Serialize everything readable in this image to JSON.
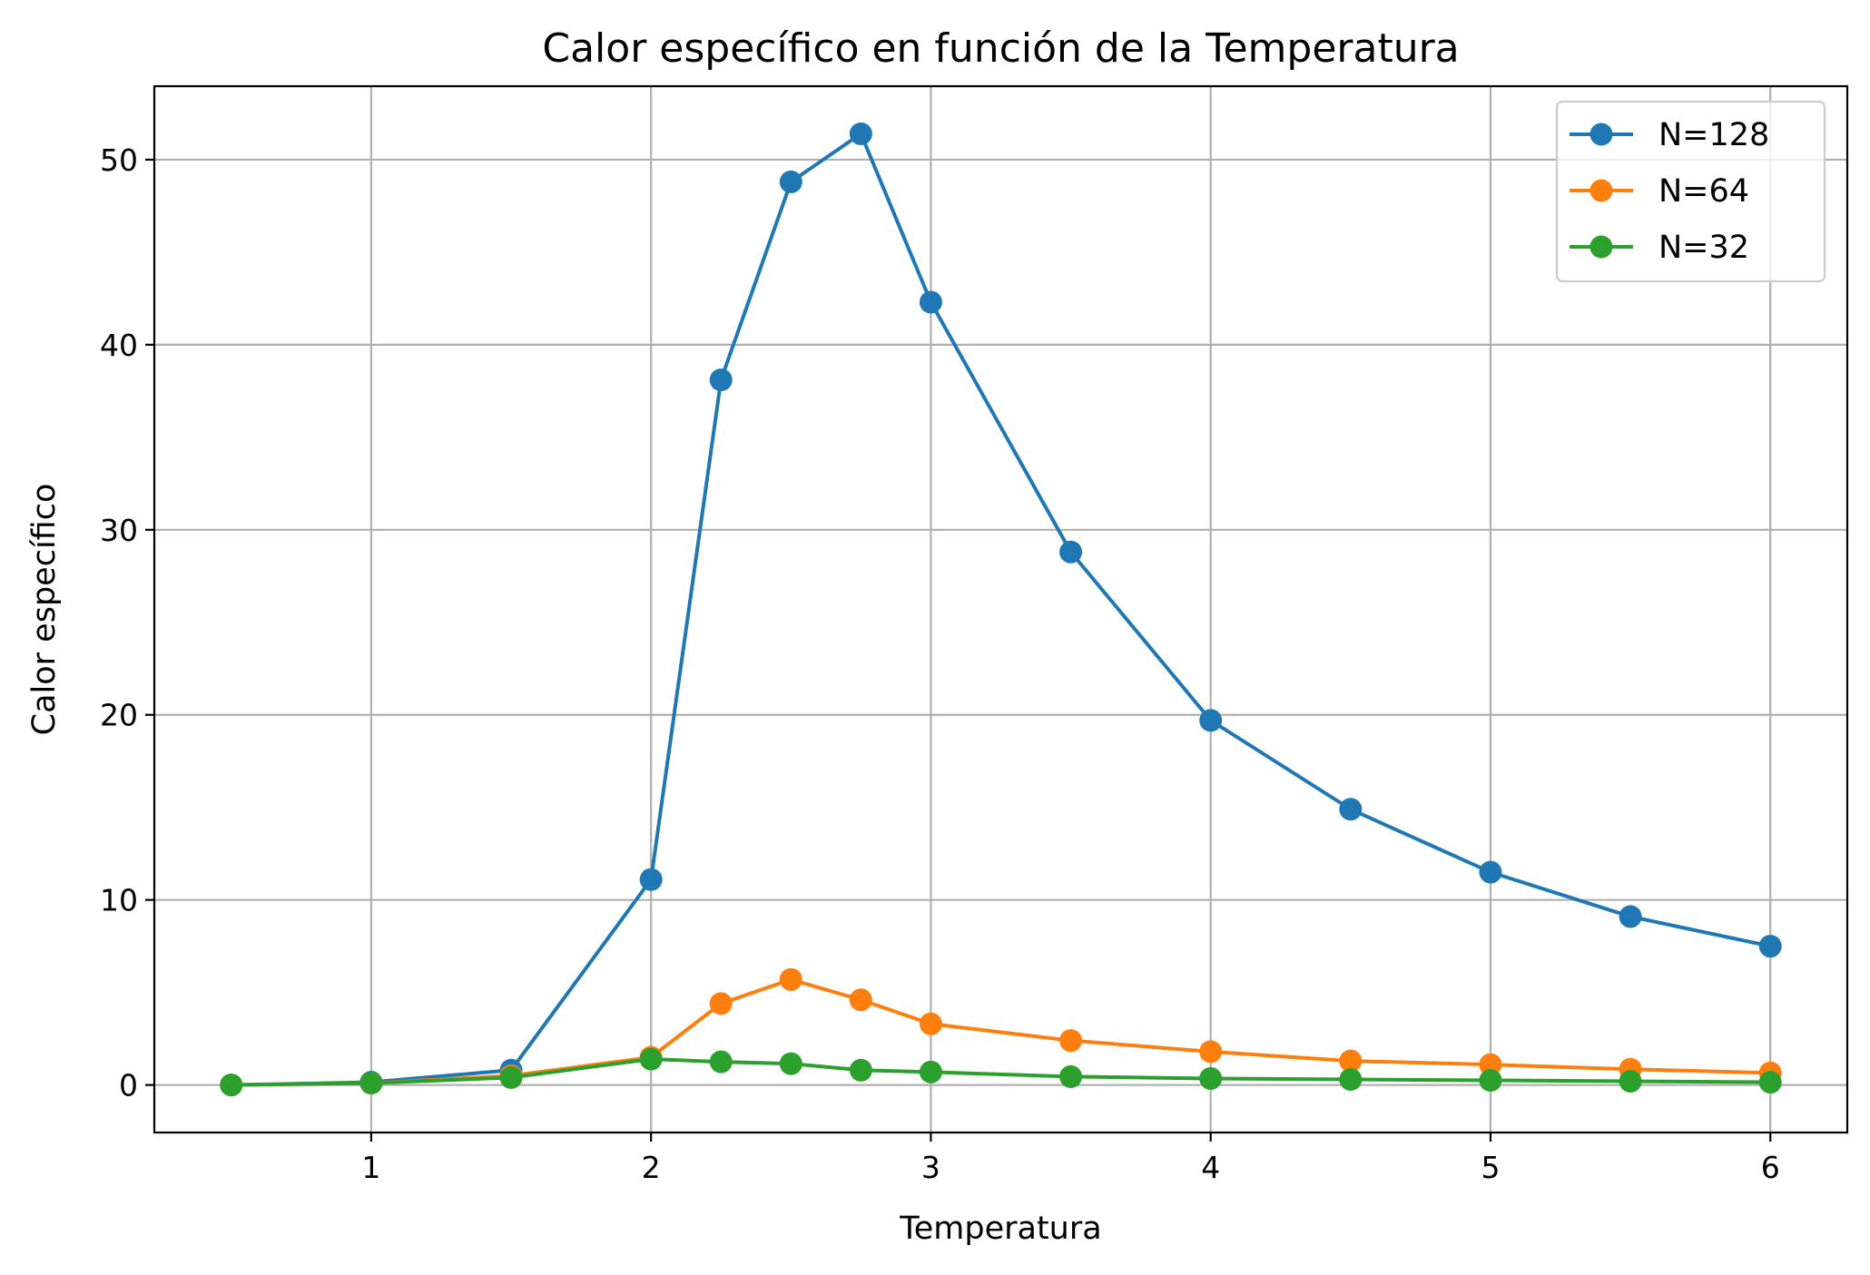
{
  "chart_data": {
    "type": "line",
    "title": "Calor específico en función de la Temperatura",
    "xlabel": "Temperatura",
    "ylabel": "Calor específico",
    "xlim": [
      0.225,
      6.275
    ],
    "ylim": [
      -2.57,
      53.97
    ],
    "x_ticks": [
      1,
      2,
      3,
      4,
      5,
      6
    ],
    "x_tick_labels": [
      "1",
      "2",
      "3",
      "4",
      "5",
      "6"
    ],
    "y_ticks": [
      0,
      10,
      20,
      30,
      40,
      50
    ],
    "y_tick_labels": [
      "0",
      "10",
      "20",
      "30",
      "40",
      "50"
    ],
    "grid": true,
    "legend_position": "top-right",
    "x": [
      0.5,
      1,
      1.5,
      2,
      2.25,
      2.5,
      2.75,
      3,
      3.5,
      4,
      4.5,
      5,
      5.5,
      6
    ],
    "series": [
      {
        "name": "N=128",
        "color": "#1f77b4",
        "values": [
          0.0,
          0.15,
          0.8,
          11.1,
          38.1,
          48.8,
          51.4,
          42.3,
          28.8,
          19.7,
          14.9,
          11.5,
          9.1,
          7.5
        ]
      },
      {
        "name": "N=64",
        "color": "#ff7f0e",
        "values": [
          0.0,
          0.1,
          0.5,
          1.5,
          4.4,
          5.7,
          4.6,
          3.3,
          2.4,
          1.8,
          1.3,
          1.1,
          0.85,
          0.65
        ]
      },
      {
        "name": "N=32",
        "color": "#2ca02c",
        "values": [
          0.0,
          0.1,
          0.4,
          1.4,
          1.25,
          1.15,
          0.8,
          0.7,
          0.45,
          0.35,
          0.3,
          0.25,
          0.2,
          0.15
        ]
      }
    ]
  }
}
